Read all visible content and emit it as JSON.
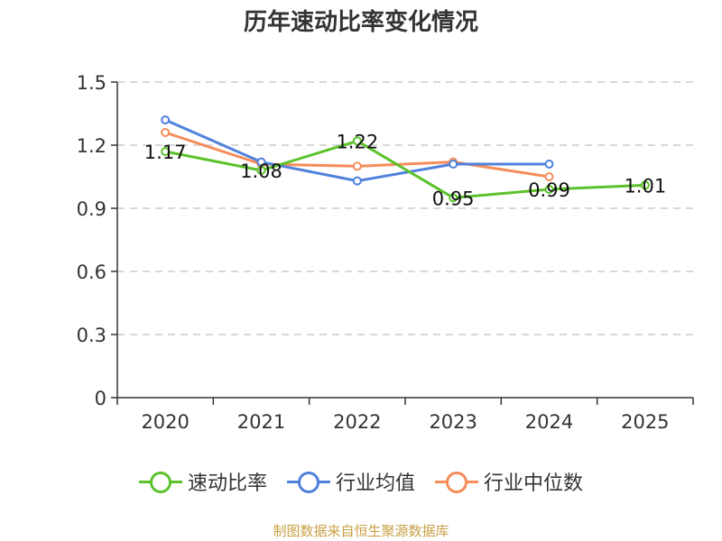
{
  "chart_data": {
    "type": "line",
    "title": "历年速动比率变化情况",
    "categories": [
      "2020",
      "2021",
      "2022",
      "2023",
      "2024",
      "2025"
    ],
    "ylim": [
      0,
      1.5
    ],
    "yticks": [
      "0",
      "0.3",
      "0.6",
      "0.9",
      "1.2",
      "1.5"
    ],
    "grid": true,
    "legend_position": "bottom",
    "series": [
      {
        "name": "速动比率",
        "color": "#5cc22b",
        "values": [
          1.17,
          1.08,
          1.22,
          0.95,
          0.99,
          1.01
        ],
        "labels": [
          "1.17",
          "1.08",
          "1.22",
          "0.95",
          "0.99",
          "1.01"
        ]
      },
      {
        "name": "行业均值",
        "color": "#4f81dc",
        "values": [
          1.32,
          1.12,
          1.03,
          1.11,
          1.11,
          null
        ]
      },
      {
        "name": "行业中位数",
        "color": "#f68c5a",
        "values": [
          1.26,
          1.11,
          1.1,
          1.12,
          1.05,
          null
        ]
      }
    ]
  },
  "source": "制图数据来自恒生聚源数据库"
}
